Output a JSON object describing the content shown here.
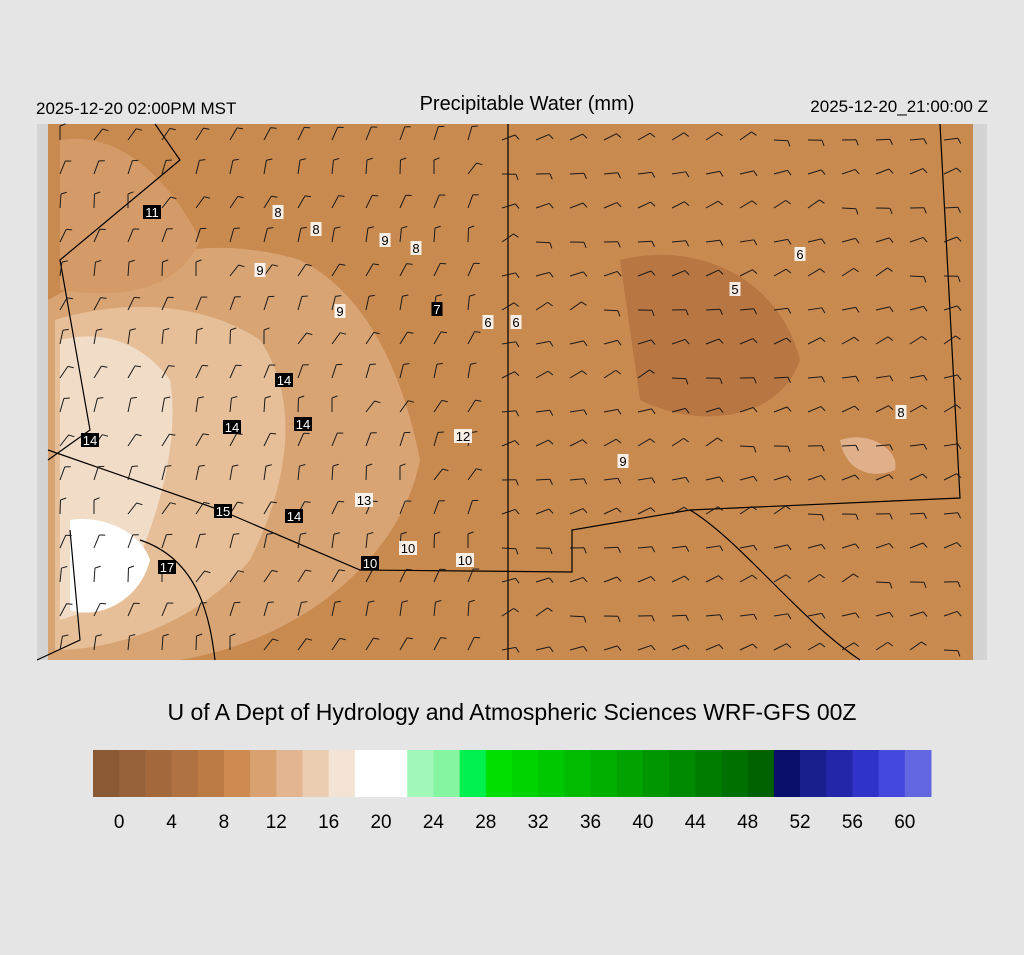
{
  "header": {
    "title": "Precipitable Water (mm)",
    "local_time": "2025-12-20 02:00PM MST",
    "valid_time": "2025-12-20_21:00:00 Z"
  },
  "map": {
    "stations": [
      11,
      8,
      8,
      9,
      8,
      9,
      9,
      7,
      6,
      6,
      6,
      5,
      14,
      14,
      14,
      14,
      12,
      8,
      9,
      13,
      15,
      14,
      10,
      10,
      10,
      17
    ]
  },
  "credit": "U of A Dept of Hydrology and Atmospheric Sciences WRF-GFS 00Z",
  "colorbar": {
    "range": [
      -2,
      62
    ],
    "colors": [
      "#8a5a35",
      "#97623a",
      "#a3693d",
      "#b07241",
      "#bc7a45",
      "#cd8a51",
      "#d9a070",
      "#e2b590",
      "#ebcdb2",
      "#f3e3d5",
      "#ffffff",
      "#ffffff",
      "#a0f7b8",
      "#86f5a2",
      "#00f050",
      "#00e000",
      "#00d400",
      "#00c800",
      "#00bb00",
      "#00af00",
      "#00a300",
      "#009600",
      "#008a00",
      "#007d00",
      "#007000",
      "#006200",
      "#0a0f6b",
      "#1a1f8f",
      "#2226a8",
      "#2f33c8",
      "#4448dc",
      "#6266e0"
    ],
    "ticks": [
      0,
      4,
      8,
      12,
      16,
      20,
      24,
      28,
      32,
      36,
      40,
      44,
      48,
      52,
      56,
      60
    ]
  }
}
